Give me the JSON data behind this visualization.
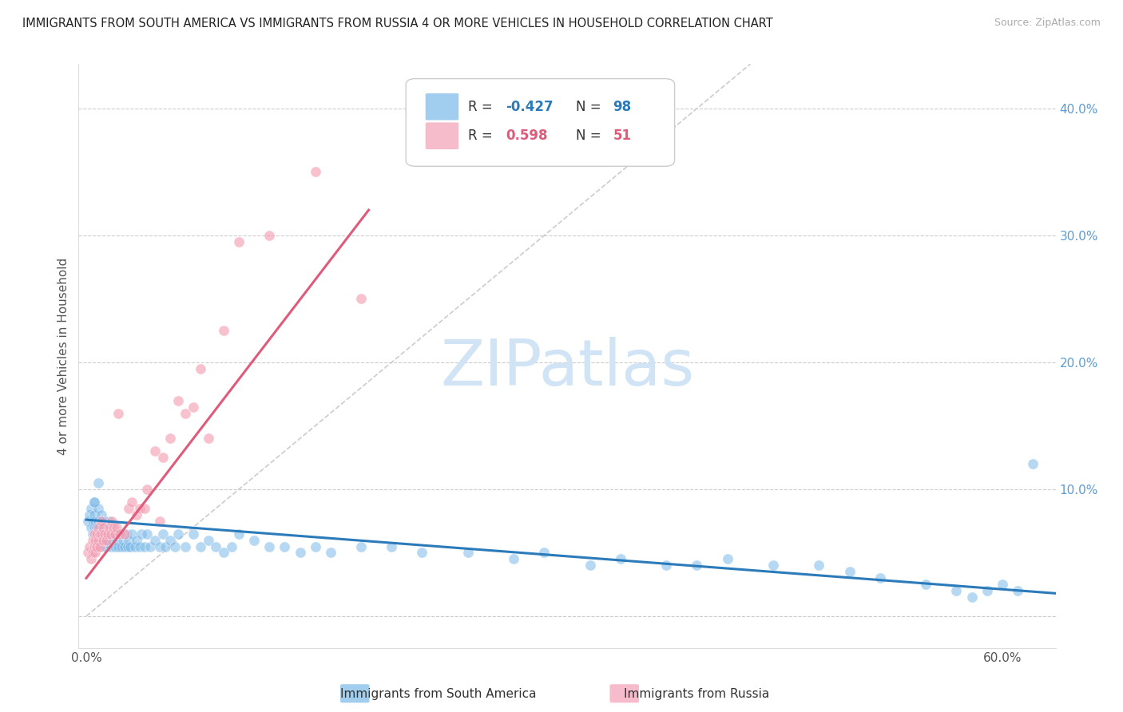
{
  "title": "IMMIGRANTS FROM SOUTH AMERICA VS IMMIGRANTS FROM RUSSIA 4 OR MORE VEHICLES IN HOUSEHOLD CORRELATION CHART",
  "source": "Source: ZipAtlas.com",
  "ylabel": "4 or more Vehicles in Household",
  "x_ticks": [
    0.0,
    0.1,
    0.2,
    0.3,
    0.4,
    0.5,
    0.6
  ],
  "x_tick_labels": [
    "0.0%",
    "",
    "",
    "",
    "",
    "",
    "60.0%"
  ],
  "y_ticks_right": [
    0.0,
    0.1,
    0.2,
    0.3,
    0.4
  ],
  "y_tick_labels_right": [
    "",
    "10.0%",
    "20.0%",
    "30.0%",
    "40.0%"
  ],
  "xlim": [
    -0.005,
    0.635
  ],
  "ylim": [
    -0.025,
    0.435
  ],
  "blue_R": -0.427,
  "blue_N": 98,
  "pink_R": 0.598,
  "pink_N": 51,
  "blue_color": "#7ab8e8",
  "pink_color": "#f4a0b5",
  "blue_line_color": "#2b7bba",
  "pink_line_color": "#e05a7a",
  "blue_label": "Immigrants from South America",
  "pink_label": "Immigrants from Russia",
  "watermark": "ZIPatlas",
  "watermark_color": "#d0e4f5",
  "background_color": "#ffffff",
  "grid_color": "#cccccc",
  "blue_scatter_x": [
    0.001,
    0.002,
    0.003,
    0.003,
    0.004,
    0.004,
    0.005,
    0.005,
    0.005,
    0.006,
    0.006,
    0.007,
    0.007,
    0.008,
    0.008,
    0.008,
    0.009,
    0.009,
    0.01,
    0.01,
    0.01,
    0.011,
    0.011,
    0.012,
    0.012,
    0.013,
    0.013,
    0.014,
    0.015,
    0.015,
    0.016,
    0.017,
    0.018,
    0.019,
    0.02,
    0.021,
    0.022,
    0.023,
    0.024,
    0.025,
    0.026,
    0.027,
    0.028,
    0.029,
    0.03,
    0.032,
    0.033,
    0.035,
    0.036,
    0.038,
    0.04,
    0.042,
    0.045,
    0.048,
    0.05,
    0.052,
    0.055,
    0.058,
    0.06,
    0.065,
    0.07,
    0.075,
    0.08,
    0.085,
    0.09,
    0.095,
    0.1,
    0.11,
    0.12,
    0.13,
    0.14,
    0.15,
    0.16,
    0.18,
    0.2,
    0.22,
    0.25,
    0.28,
    0.3,
    0.33,
    0.35,
    0.38,
    0.4,
    0.42,
    0.45,
    0.48,
    0.5,
    0.52,
    0.55,
    0.57,
    0.58,
    0.59,
    0.6,
    0.61,
    0.62,
    0.005,
    0.008,
    0.012
  ],
  "blue_scatter_y": [
    0.075,
    0.08,
    0.07,
    0.085,
    0.065,
    0.075,
    0.07,
    0.08,
    0.09,
    0.065,
    0.075,
    0.06,
    0.07,
    0.065,
    0.075,
    0.085,
    0.06,
    0.07,
    0.065,
    0.075,
    0.08,
    0.055,
    0.065,
    0.06,
    0.07,
    0.055,
    0.065,
    0.06,
    0.065,
    0.075,
    0.055,
    0.06,
    0.065,
    0.055,
    0.06,
    0.055,
    0.065,
    0.055,
    0.06,
    0.055,
    0.065,
    0.055,
    0.06,
    0.055,
    0.065,
    0.055,
    0.06,
    0.055,
    0.065,
    0.055,
    0.065,
    0.055,
    0.06,
    0.055,
    0.065,
    0.055,
    0.06,
    0.055,
    0.065,
    0.055,
    0.065,
    0.055,
    0.06,
    0.055,
    0.05,
    0.055,
    0.065,
    0.06,
    0.055,
    0.055,
    0.05,
    0.055,
    0.05,
    0.055,
    0.055,
    0.05,
    0.05,
    0.045,
    0.05,
    0.04,
    0.045,
    0.04,
    0.04,
    0.045,
    0.04,
    0.04,
    0.035,
    0.03,
    0.025,
    0.02,
    0.015,
    0.02,
    0.025,
    0.02,
    0.12,
    0.09,
    0.105,
    0.075
  ],
  "pink_scatter_x": [
    0.001,
    0.002,
    0.003,
    0.004,
    0.004,
    0.005,
    0.005,
    0.006,
    0.006,
    0.007,
    0.007,
    0.008,
    0.008,
    0.009,
    0.009,
    0.01,
    0.01,
    0.011,
    0.011,
    0.012,
    0.013,
    0.014,
    0.015,
    0.016,
    0.017,
    0.018,
    0.019,
    0.02,
    0.021,
    0.022,
    0.025,
    0.028,
    0.03,
    0.033,
    0.035,
    0.038,
    0.04,
    0.045,
    0.048,
    0.05,
    0.055,
    0.06,
    0.065,
    0.07,
    0.075,
    0.08,
    0.09,
    0.1,
    0.12,
    0.15,
    0.18
  ],
  "pink_scatter_y": [
    0.05,
    0.055,
    0.045,
    0.06,
    0.05,
    0.055,
    0.065,
    0.05,
    0.06,
    0.055,
    0.065,
    0.06,
    0.07,
    0.055,
    0.065,
    0.065,
    0.075,
    0.06,
    0.07,
    0.065,
    0.06,
    0.065,
    0.07,
    0.065,
    0.075,
    0.07,
    0.065,
    0.07,
    0.16,
    0.065,
    0.065,
    0.085,
    0.09,
    0.08,
    0.085,
    0.085,
    0.1,
    0.13,
    0.075,
    0.125,
    0.14,
    0.17,
    0.16,
    0.165,
    0.195,
    0.14,
    0.225,
    0.295,
    0.3,
    0.35,
    0.25
  ],
  "blue_line_x0": 0.0,
  "blue_line_x1": 0.635,
  "blue_line_y0": 0.076,
  "blue_line_y1": 0.018,
  "pink_line_x0": 0.0,
  "pink_line_x1": 0.185,
  "pink_line_y0": 0.03,
  "pink_line_y1": 0.32,
  "diag_line_x0": 0.0,
  "diag_line_x1": 0.435,
  "diag_line_y0": 0.0,
  "diag_line_y1": 0.435
}
